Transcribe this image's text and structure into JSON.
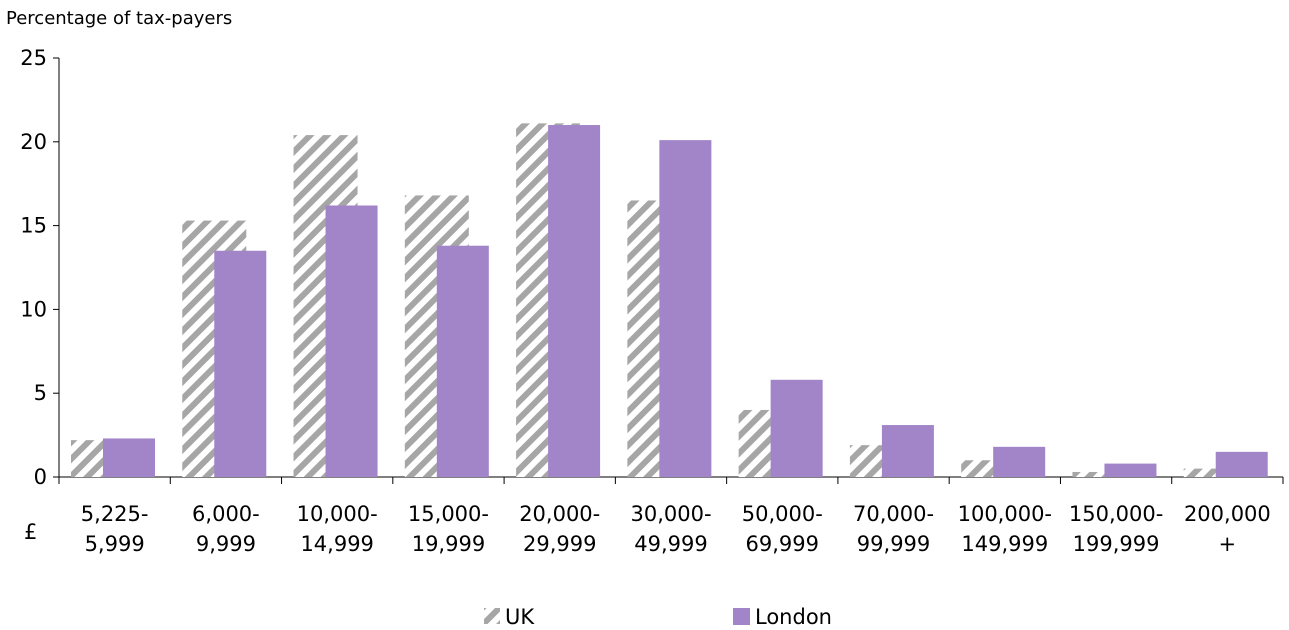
{
  "chart_data": {
    "type": "bar",
    "ylabel": "Percentage of tax-payers",
    "xlabel": "£",
    "ylim": [
      0,
      25
    ],
    "yticks": [
      0,
      5,
      10,
      15,
      20,
      25
    ],
    "categories": [
      [
        "5,225-",
        "5,999"
      ],
      [
        "6,000-",
        "9,999"
      ],
      [
        "10,000-",
        "14,999"
      ],
      [
        "15,000-",
        "19,999"
      ],
      [
        "20,000-",
        "29,999"
      ],
      [
        "30,000-",
        "49,999"
      ],
      [
        "50,000-",
        "69,999"
      ],
      [
        "70,000-",
        "99,999"
      ],
      [
        "100,000-",
        "149,999"
      ],
      [
        "150,000-",
        "199,999"
      ],
      [
        "200,000",
        "+"
      ]
    ],
    "series": [
      {
        "name": "UK",
        "values": [
          2.2,
          15.3,
          20.4,
          16.8,
          21.1,
          16.5,
          4.0,
          1.9,
          1.0,
          0.3,
          0.5
        ],
        "color": "#a6a6a6",
        "pattern": "diagonal-stripes"
      },
      {
        "name": "London",
        "values": [
          2.3,
          13.5,
          16.2,
          13.8,
          21.0,
          20.1,
          5.8,
          3.1,
          1.8,
          0.8,
          1.5
        ],
        "color": "#a185c8"
      }
    ],
    "grid": false,
    "legend": "bottom-center"
  }
}
